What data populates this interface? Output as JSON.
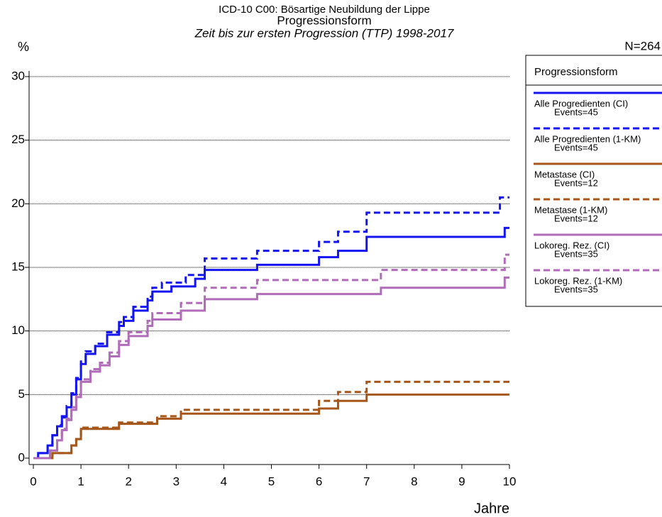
{
  "chart_data": {
    "type": "step",
    "title": "ICD-10 C00: Bösartige Neubildung der Lippe",
    "subtitle": "Progressionsform",
    "subtitle2": "Zeit bis zur ersten Progression (TTP) 1998-2017",
    "y_label": "%",
    "x_label": "Jahre",
    "n_label": "N=264",
    "legend_title": "Progressionsform",
    "xlim": [
      0,
      10
    ],
    "xticks": [
      0,
      1,
      2,
      3,
      4,
      5,
      6,
      7,
      8,
      9,
      10
    ],
    "ylim": [
      0,
      30
    ],
    "yticks": [
      0,
      5,
      10,
      15,
      20,
      25,
      30
    ],
    "grid": true,
    "series": [
      {
        "name": "Alle Progredienten (CI)",
        "events": "Events=45",
        "color": "#1414f0",
        "dashed": false,
        "x": [
          0,
          0.1,
          0.3,
          0.4,
          0.5,
          0.6,
          0.7,
          0.8,
          0.9,
          1.0,
          1.1,
          1.3,
          1.55,
          1.8,
          1.9,
          2.1,
          2.4,
          2.5,
          2.9,
          3.4,
          3.6,
          4.7,
          6.0,
          6.4,
          7.0,
          9.9,
          10
        ],
        "values": [
          0,
          0.4,
          1.0,
          1.8,
          2.5,
          3.2,
          4.0,
          5.0,
          6.2,
          7.4,
          8.2,
          8.8,
          9.7,
          10.4,
          10.8,
          11.6,
          12.4,
          13.1,
          13.5,
          14.1,
          14.8,
          15.2,
          15.8,
          16.3,
          17.4,
          18.1,
          18.1
        ]
      },
      {
        "name": "Alle Progredienten (1-KM)",
        "events": "Events=45",
        "color": "#1414f0",
        "dashed": true,
        "x": [
          0,
          0.1,
          0.3,
          0.4,
          0.5,
          0.6,
          0.7,
          0.8,
          0.9,
          1.0,
          1.1,
          1.3,
          1.55,
          1.8,
          1.9,
          2.1,
          2.4,
          2.5,
          2.7,
          3.2,
          3.6,
          4.7,
          6.0,
          6.4,
          7.0,
          9.8,
          10
        ],
        "values": [
          0,
          0.4,
          1.0,
          1.8,
          2.6,
          3.3,
          4.1,
          5.1,
          6.3,
          7.6,
          8.4,
          9.0,
          9.9,
          10.7,
          11.1,
          11.9,
          12.7,
          13.4,
          13.8,
          14.4,
          15.7,
          16.3,
          17.0,
          17.8,
          19.3,
          20.5,
          20.5
        ]
      },
      {
        "name": "Metastase (CI)",
        "events": "Events=12",
        "color": "#a5561a",
        "dashed": false,
        "x": [
          0,
          0.4,
          0.8,
          0.9,
          1.0,
          1.8,
          2.6,
          3.1,
          6.0,
          6.4,
          7.0,
          10
        ],
        "values": [
          0,
          0.4,
          1.0,
          1.5,
          2.3,
          2.7,
          3.1,
          3.5,
          3.9,
          4.5,
          5.0,
          5.0
        ]
      },
      {
        "name": "Metastase (1-KM)",
        "events": "Events=12",
        "color": "#a5561a",
        "dashed": true,
        "x": [
          0,
          0.4,
          0.8,
          0.9,
          1.0,
          1.8,
          2.6,
          3.1,
          6.0,
          6.4,
          7.0,
          10
        ],
        "values": [
          0,
          0.4,
          1.0,
          1.5,
          2.4,
          2.8,
          3.3,
          3.8,
          4.5,
          5.2,
          6.0,
          6.0
        ]
      },
      {
        "name": "Lokoreg. Rez. (CI)",
        "events": "Events=35",
        "color": "#b06cb8",
        "dashed": false,
        "x": [
          0,
          0.35,
          0.5,
          0.6,
          0.7,
          0.8,
          0.9,
          1.0,
          1.2,
          1.4,
          1.6,
          1.8,
          2.0,
          2.4,
          2.5,
          3.1,
          3.6,
          4.7,
          7.3,
          9.9,
          10
        ],
        "values": [
          0,
          0.6,
          1.4,
          2.2,
          3.0,
          3.8,
          4.8,
          6.0,
          6.8,
          7.3,
          8.0,
          8.9,
          9.6,
          10.4,
          10.9,
          11.6,
          12.5,
          12.9,
          13.4,
          14.2,
          14.2
        ]
      },
      {
        "name": "Lokoreg. Rez. (1-KM)",
        "events": "Events=35",
        "color": "#b06cb8",
        "dashed": true,
        "x": [
          0,
          0.35,
          0.5,
          0.6,
          0.7,
          0.8,
          0.9,
          1.0,
          1.2,
          1.4,
          1.6,
          1.8,
          2.0,
          2.4,
          2.5,
          3.1,
          3.6,
          4.7,
          7.3,
          9.9,
          10
        ],
        "values": [
          0,
          0.6,
          1.4,
          2.3,
          3.1,
          4.0,
          5.0,
          6.2,
          7.0,
          7.5,
          8.3,
          9.2,
          9.9,
          10.8,
          11.4,
          12.2,
          13.4,
          14.0,
          14.8,
          16.0,
          16.0
        ]
      }
    ]
  }
}
